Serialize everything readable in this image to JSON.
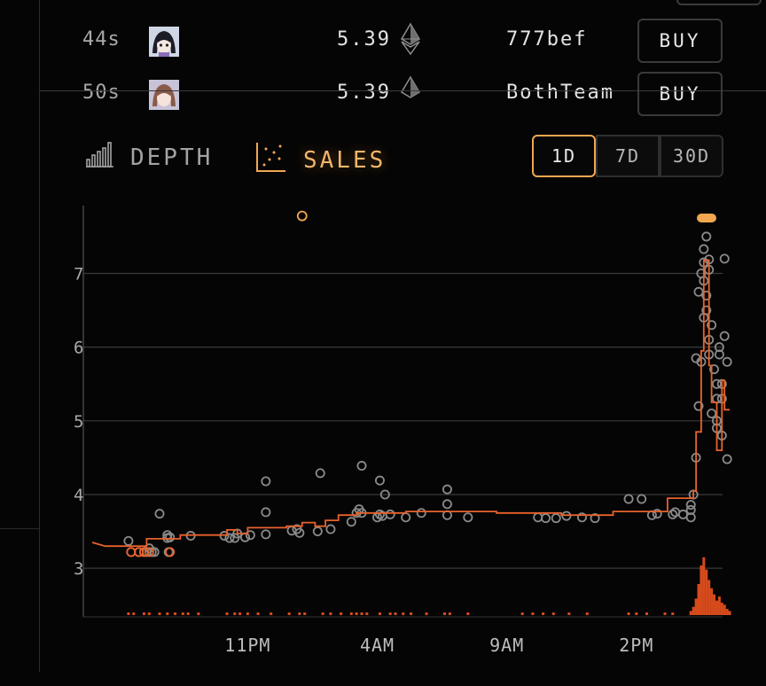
{
  "listings": [
    {
      "time": "44s",
      "price": "5.39",
      "seller": "777bef",
      "action": "BUY",
      "avatar": "avatar-anime-dark-hair"
    },
    {
      "time": "50s",
      "price": "5.39",
      "seller": "BothTeam",
      "action": "BUY",
      "avatar": "avatar-anime-brown-hair"
    }
  ],
  "tabs": {
    "depth": {
      "label": "DEPTH",
      "icon": "bar-chart-icon"
    },
    "sales": {
      "label": "SALES",
      "icon": "scatter-plot-icon",
      "active": true
    }
  },
  "ranges": [
    {
      "label": "1D",
      "active": true
    },
    {
      "label": "7D",
      "active": false
    },
    {
      "label": "30D",
      "active": false
    }
  ],
  "colors": {
    "accent": "#f0a750",
    "step_line": "#e8622c",
    "sale_dot": "#8a8a8a",
    "volume": "#e8501e",
    "grid": "#3a3a3a"
  },
  "chart_data": {
    "type": "scatter",
    "xticks": [
      {
        "label": "11PM",
        "t": 6
      },
      {
        "label": "4AM",
        "t": 11
      },
      {
        "label": "9AM",
        "t": 16
      },
      {
        "label": "2PM",
        "t": 21
      }
    ],
    "yticks": [
      3,
      4,
      5,
      6,
      7
    ],
    "ylim": [
      2.34,
      7.92
    ],
    "xlim": [
      0,
      24
    ],
    "grid": true,
    "series": [
      {
        "kind": "sales",
        "points": [
          [
            1.4,
            3.37
          ],
          [
            1.5,
            3.22
          ],
          [
            1.8,
            3.22
          ],
          [
            2.0,
            3.22
          ],
          [
            2.1,
            3.22
          ],
          [
            2.2,
            3.27
          ],
          [
            2.3,
            3.22
          ],
          [
            2.4,
            3.22
          ],
          [
            2.95,
            3.22
          ],
          [
            2.9,
            3.45
          ],
          [
            2.6,
            3.74
          ],
          [
            2.9,
            3.41
          ],
          [
            3.0,
            3.42
          ],
          [
            3.8,
            3.44
          ],
          [
            5.1,
            3.44
          ],
          [
            5.3,
            3.41
          ],
          [
            5.5,
            3.41
          ],
          [
            5.6,
            3.47
          ],
          [
            5.9,
            3.42
          ],
          [
            6.1,
            3.45
          ],
          [
            6.7,
            3.46
          ],
          [
            6.7,
            3.76
          ],
          [
            6.7,
            4.18
          ],
          [
            7.7,
            3.51
          ],
          [
            7.9,
            3.53
          ],
          [
            8.0,
            3.48
          ],
          [
            8.7,
            3.5
          ],
          [
            9.2,
            3.53
          ],
          [
            8.8,
            4.29
          ],
          [
            10.0,
            3.63
          ],
          [
            10.2,
            3.75
          ],
          [
            10.3,
            3.8
          ],
          [
            10.4,
            3.75
          ],
          [
            10.4,
            4.39
          ],
          [
            11.0,
            3.69
          ],
          [
            11.1,
            3.73
          ],
          [
            11.2,
            3.71
          ],
          [
            11.1,
            4.19
          ],
          [
            11.3,
            4.0
          ],
          [
            11.5,
            3.73
          ],
          [
            12.1,
            3.69
          ],
          [
            12.7,
            3.75
          ],
          [
            13.7,
            3.72
          ],
          [
            13.7,
            3.87
          ],
          [
            13.7,
            4.07
          ],
          [
            14.5,
            3.69
          ],
          [
            17.2,
            3.69
          ],
          [
            17.5,
            3.68
          ],
          [
            18.3,
            3.71
          ],
          [
            17.9,
            3.68
          ],
          [
            18.9,
            3.69
          ],
          [
            19.4,
            3.68
          ],
          [
            20.7,
            3.94
          ],
          [
            21.2,
            3.94
          ],
          [
            21.8,
            3.74
          ],
          [
            21.6,
            3.72
          ],
          [
            22.4,
            3.73
          ],
          [
            22.5,
            3.76
          ],
          [
            22.8,
            3.73
          ],
          [
            23.1,
            3.69
          ],
          [
            23.1,
            3.79
          ],
          [
            23.1,
            3.86
          ],
          [
            23.2,
            4.0
          ],
          [
            23.3,
            4.5
          ],
          [
            23.4,
            5.2
          ],
          [
            23.5,
            5.8
          ],
          [
            23.6,
            6.4
          ],
          [
            23.5,
            7.0
          ],
          [
            23.6,
            7.33
          ],
          [
            23.8,
            7.19
          ],
          [
            23.8,
            7.05
          ],
          [
            23.6,
            6.9
          ],
          [
            23.7,
            6.7
          ],
          [
            23.7,
            6.5
          ],
          [
            23.9,
            6.3
          ],
          [
            23.8,
            6.1
          ],
          [
            23.8,
            5.9
          ],
          [
            24.0,
            5.7
          ],
          [
            24.1,
            5.5
          ],
          [
            24.1,
            5.3
          ],
          [
            23.9,
            5.1
          ],
          [
            24.1,
            4.9
          ],
          [
            24.1,
            5.0
          ],
          [
            24.3,
            5.3
          ],
          [
            24.3,
            5.5
          ],
          [
            24.2,
            6.0
          ],
          [
            24.4,
            6.15
          ],
          [
            24.4,
            7.2
          ],
          [
            24.5,
            5.8
          ],
          [
            24.5,
            4.48
          ],
          [
            24.3,
            4.8
          ],
          [
            24.2,
            5.9
          ],
          [
            23.7,
            7.5
          ],
          [
            23.6,
            7.15
          ],
          [
            23.4,
            6.75
          ],
          [
            23.3,
            5.85
          ]
        ]
      },
      {
        "kind": "outlier",
        "points": [
          [
            8.1,
            7.78
          ]
        ]
      },
      {
        "kind": "floor",
        "points": [
          [
            0,
            3.35
          ],
          [
            0.5,
            3.3
          ],
          [
            2.1,
            3.3
          ],
          [
            2.1,
            3.4
          ],
          [
            3.4,
            3.4
          ],
          [
            3.4,
            3.45
          ],
          [
            5.2,
            3.45
          ],
          [
            5.2,
            3.52
          ],
          [
            5.6,
            3.52
          ],
          [
            5.6,
            3.47
          ],
          [
            6.0,
            3.47
          ],
          [
            6.0,
            3.55
          ],
          [
            7.5,
            3.55
          ],
          [
            7.5,
            3.57
          ],
          [
            8.1,
            3.57
          ],
          [
            8.1,
            3.62
          ],
          [
            8.6,
            3.62
          ],
          [
            8.6,
            3.57
          ],
          [
            9.0,
            3.57
          ],
          [
            9.0,
            3.65
          ],
          [
            9.5,
            3.65
          ],
          [
            9.5,
            3.72
          ],
          [
            10.2,
            3.72
          ],
          [
            10.2,
            3.75
          ],
          [
            12.1,
            3.75
          ],
          [
            12.1,
            3.77
          ],
          [
            15.6,
            3.77
          ],
          [
            15.6,
            3.75
          ],
          [
            18.1,
            3.75
          ],
          [
            18.1,
            3.72
          ],
          [
            20.1,
            3.72
          ],
          [
            20.1,
            3.77
          ],
          [
            22.2,
            3.77
          ],
          [
            22.2,
            3.95
          ],
          [
            23.2,
            3.95
          ],
          [
            23.2,
            4.05
          ],
          [
            23.3,
            4.05
          ],
          [
            23.3,
            4.85
          ],
          [
            23.5,
            4.85
          ],
          [
            23.5,
            5.95
          ],
          [
            23.6,
            5.95
          ],
          [
            23.6,
            7.18
          ],
          [
            23.8,
            7.18
          ],
          [
            23.8,
            5.75
          ],
          [
            23.9,
            5.75
          ],
          [
            23.9,
            5.25
          ],
          [
            24.1,
            5.25
          ],
          [
            24.1,
            4.6
          ],
          [
            24.3,
            4.6
          ],
          [
            24.3,
            5.55
          ],
          [
            24.4,
            5.55
          ],
          [
            24.4,
            5.15
          ],
          [
            24.6,
            5.15
          ]
        ]
      }
    ],
    "volume": [
      [
        1.4,
        1
      ],
      [
        1.6,
        1
      ],
      [
        2.0,
        1
      ],
      [
        2.2,
        1
      ],
      [
        2.6,
        1
      ],
      [
        2.9,
        1
      ],
      [
        3.2,
        1
      ],
      [
        3.5,
        1
      ],
      [
        3.7,
        1
      ],
      [
        4.1,
        1
      ],
      [
        5.2,
        1
      ],
      [
        5.5,
        1
      ],
      [
        5.7,
        1
      ],
      [
        6.0,
        1
      ],
      [
        6.4,
        1
      ],
      [
        6.9,
        1
      ],
      [
        7.6,
        1
      ],
      [
        8.0,
        1
      ],
      [
        8.2,
        1
      ],
      [
        8.9,
        1
      ],
      [
        9.2,
        1
      ],
      [
        9.6,
        1
      ],
      [
        10.0,
        1
      ],
      [
        10.2,
        1
      ],
      [
        10.4,
        1
      ],
      [
        10.6,
        1
      ],
      [
        11.1,
        1
      ],
      [
        11.5,
        1
      ],
      [
        11.7,
        1
      ],
      [
        12.0,
        1
      ],
      [
        12.3,
        1
      ],
      [
        12.9,
        1
      ],
      [
        13.6,
        1
      ],
      [
        13.8,
        1
      ],
      [
        14.5,
        1
      ],
      [
        16.6,
        1
      ],
      [
        17.0,
        1
      ],
      [
        17.4,
        1
      ],
      [
        17.8,
        1
      ],
      [
        18.4,
        1
      ],
      [
        19.1,
        1
      ],
      [
        20.7,
        1
      ],
      [
        21.0,
        1
      ],
      [
        21.4,
        1
      ],
      [
        22.1,
        1
      ],
      [
        22.4,
        1
      ],
      [
        23.1,
        2
      ],
      [
        23.2,
        4
      ],
      [
        23.3,
        8
      ],
      [
        23.4,
        15
      ],
      [
        23.5,
        24
      ],
      [
        23.6,
        28
      ],
      [
        23.7,
        22
      ],
      [
        23.8,
        17
      ],
      [
        23.9,
        13
      ],
      [
        24.0,
        10
      ],
      [
        24.1,
        7
      ],
      [
        24.2,
        9
      ],
      [
        24.3,
        6
      ],
      [
        24.4,
        5
      ],
      [
        24.5,
        3
      ],
      [
        24.6,
        2
      ]
    ],
    "volume_max": 30
  }
}
